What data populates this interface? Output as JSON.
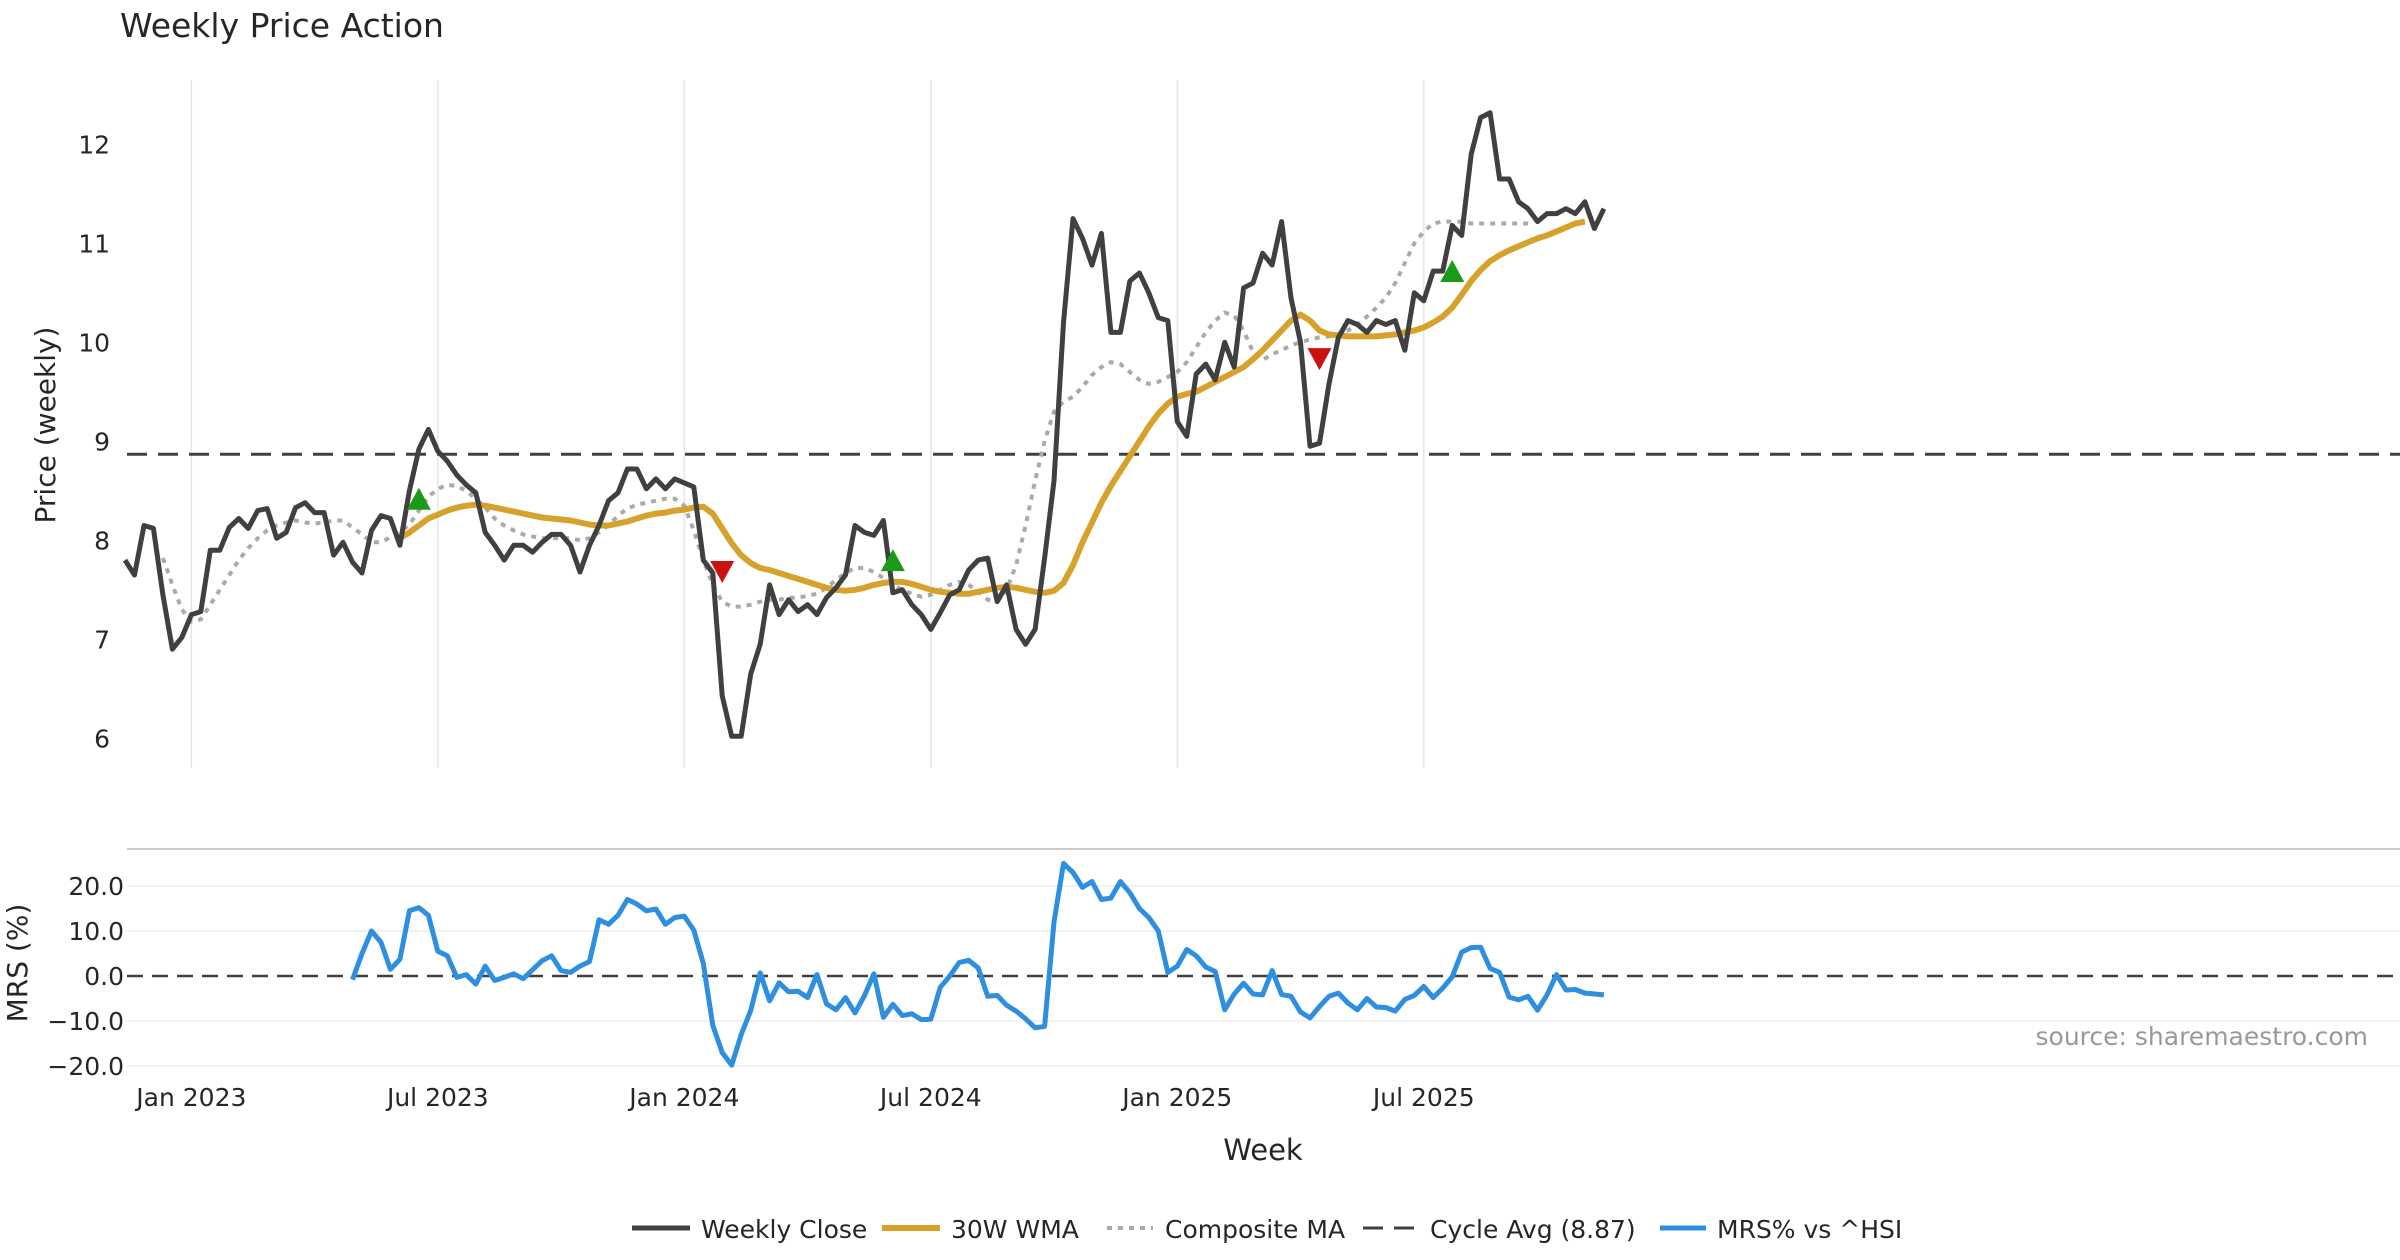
{
  "chart_data": {
    "type": "line",
    "title": "Weekly Price Action",
    "xlabel": "Week",
    "x_ticks": [
      "Jan 2023",
      "Jul 2023",
      "Jan 2024",
      "Jul 2024",
      "Jan 2025",
      "Jul 2025"
    ],
    "price_panel": {
      "ylabel": "Price (weekly)",
      "ylim": [
        5.7,
        12.65
      ],
      "yticks": [
        "6",
        "7",
        "8",
        "9",
        "10",
        "11",
        "12"
      ],
      "cycle_avg": 8.87,
      "series": [
        {
          "name": "Weekly Close",
          "color": "#404040",
          "values": [
            7.8,
            7.65,
            8.15,
            8.12,
            7.45,
            6.9,
            7.02,
            7.25,
            7.28,
            7.9,
            7.9,
            8.13,
            8.22,
            8.12,
            8.3,
            8.32,
            8.02,
            8.08,
            8.33,
            8.38,
            8.28,
            8.28,
            7.85,
            7.98,
            7.78,
            7.67,
            8.1,
            8.25,
            8.22,
            7.95,
            8.5,
            8.92,
            9.12,
            8.9,
            8.8,
            8.66,
            8.56,
            8.48,
            8.08,
            7.95,
            7.8,
            7.95,
            7.95,
            7.88,
            7.98,
            8.06,
            8.06,
            7.95,
            7.68,
            7.95,
            8.15,
            8.4,
            8.48,
            8.72,
            8.72,
            8.52,
            8.62,
            8.52,
            8.62,
            8.58,
            8.54,
            7.8,
            7.67,
            6.43,
            6.02,
            6.02,
            6.65,
            6.95,
            7.55,
            7.25,
            7.4,
            7.28,
            7.35,
            7.25,
            7.42,
            7.52,
            7.65,
            8.15,
            8.08,
            8.05,
            8.2,
            7.47,
            7.5,
            7.35,
            7.25,
            7.1,
            7.27,
            7.45,
            7.5,
            7.7,
            7.8,
            7.82,
            7.38,
            7.55,
            7.1,
            6.95,
            7.1,
            7.82,
            8.6,
            10.2,
            11.25,
            11.05,
            10.78,
            11.1,
            10.1,
            10.1,
            10.62,
            10.7,
            10.5,
            10.25,
            10.22,
            9.2,
            9.05,
            9.68,
            9.78,
            9.62,
            10.0,
            9.75,
            10.55,
            10.6,
            10.9,
            10.78,
            11.22,
            10.45,
            10.0,
            8.95,
            8.98,
            9.58,
            10.05,
            10.22,
            10.18,
            10.1,
            10.22,
            10.18,
            10.22,
            9.92,
            10.5,
            10.42,
            10.72,
            10.72,
            11.18,
            11.08,
            11.9,
            12.27,
            12.32,
            11.65,
            11.65,
            11.42,
            11.35,
            11.22,
            11.3,
            11.3,
            11.35,
            11.3,
            11.42,
            11.15,
            11.35
          ]
        },
        {
          "name": "30W WMA",
          "color": "#d6a22c",
          "start": 29,
          "values": [
            8.02,
            8.08,
            8.15,
            8.22,
            8.26,
            8.3,
            8.33,
            8.35,
            8.36,
            8.35,
            8.33,
            8.31,
            8.29,
            8.27,
            8.25,
            8.23,
            8.22,
            8.21,
            8.2,
            8.18,
            8.16,
            8.15,
            8.15,
            8.17,
            8.19,
            8.22,
            8.25,
            8.27,
            8.28,
            8.3,
            8.31,
            8.33,
            8.34,
            8.27,
            8.12,
            7.97,
            7.85,
            7.77,
            7.72,
            7.7,
            7.67,
            7.64,
            7.61,
            7.58,
            7.55,
            7.52,
            7.5,
            7.49,
            7.5,
            7.52,
            7.55,
            7.57,
            7.58,
            7.58,
            7.56,
            7.53,
            7.5,
            7.48,
            7.47,
            7.46,
            7.46,
            7.48,
            7.5,
            7.52,
            7.53,
            7.52,
            7.5,
            7.48,
            7.47,
            7.49,
            7.57,
            7.75,
            7.98,
            8.18,
            8.38,
            8.55,
            8.7,
            8.85,
            9.0,
            9.15,
            9.28,
            9.38,
            9.45,
            9.48,
            9.5,
            9.55,
            9.6,
            9.65,
            9.7,
            9.75,
            9.83,
            9.92,
            10.02,
            10.12,
            10.22,
            10.28,
            10.22,
            10.12,
            10.08,
            10.07,
            10.06,
            10.06,
            10.06,
            10.06,
            10.07,
            10.08,
            10.1,
            10.12,
            10.15,
            10.2,
            10.26,
            10.35,
            10.48,
            10.62,
            10.73,
            10.82,
            10.88,
            10.93,
            10.97,
            11.01,
            11.05,
            11.08,
            11.12,
            11.16,
            11.2,
            11.22
          ]
        },
        {
          "name": "Composite MA",
          "color": "#aaaaaa",
          "start": 4,
          "values": [
            7.82,
            7.55,
            7.3,
            7.18,
            7.2,
            7.35,
            7.5,
            7.65,
            7.8,
            7.92,
            8.02,
            8.1,
            8.15,
            8.18,
            8.2,
            8.18,
            8.17,
            8.18,
            8.2,
            8.2,
            8.13,
            8.06,
            7.98,
            7.98,
            8.03,
            8.08,
            8.16,
            8.3,
            8.44,
            8.52,
            8.56,
            8.55,
            8.5,
            8.42,
            8.33,
            8.22,
            8.15,
            8.1,
            8.06,
            8.04,
            8.02,
            8.02,
            8.02,
            8.02,
            8.0,
            8.02,
            8.08,
            8.15,
            8.25,
            8.32,
            8.36,
            8.38,
            8.4,
            8.42,
            8.42,
            8.35,
            8.1,
            7.8,
            7.55,
            7.38,
            7.33,
            7.33,
            7.35,
            7.38,
            7.4,
            7.4,
            7.42,
            7.42,
            7.44,
            7.46,
            7.52,
            7.6,
            7.67,
            7.72,
            7.72,
            7.68,
            7.62,
            7.55,
            7.5,
            7.46,
            7.43,
            7.45,
            7.5,
            7.55,
            7.58,
            7.55,
            7.48,
            7.4,
            7.38,
            7.5,
            7.75,
            8.15,
            8.6,
            9.0,
            9.3,
            9.4,
            9.45,
            9.55,
            9.67,
            9.75,
            9.8,
            9.78,
            9.7,
            9.62,
            9.58,
            9.6,
            9.65,
            9.7,
            9.8,
            9.95,
            10.1,
            10.22,
            10.3,
            10.27,
            10.12,
            9.9,
            9.82,
            9.88,
            9.92,
            9.97,
            10.0,
            10.03,
            10.05,
            10.06,
            10.08,
            10.12,
            10.18,
            10.26,
            10.35,
            10.45,
            10.6,
            10.8,
            11.0,
            11.12,
            11.2,
            11.22,
            11.22,
            11.22,
            11.2,
            11.2,
            11.2,
            11.2,
            11.2,
            11.2,
            11.2
          ]
        }
      ],
      "signals": [
        {
          "kind": "buy",
          "index": 31,
          "value": 8.42
        },
        {
          "kind": "sell",
          "index": 63,
          "value": 7.68
        },
        {
          "kind": "buy",
          "index": 81,
          "value": 7.8
        },
        {
          "kind": "sell",
          "index": 126,
          "value": 9.83
        },
        {
          "kind": "buy",
          "index": 140,
          "value": 10.72
        }
      ]
    },
    "mrs_panel": {
      "ylabel": "MRS (%)",
      "ylim": [
        -22,
        28
      ],
      "yticks": [
        "20.0",
        "10.0",
        "0.0",
        "−10.0",
        "−20.0"
      ],
      "series": [
        {
          "name": "MRS% vs ^HSI",
          "color": "#2e8fe0",
          "start": 24,
          "values": [
            -0.8,
            5,
            10,
            7.5,
            1.5,
            3.7,
            14.5,
            15.2,
            13.5,
            5.5,
            4.5,
            -0.3,
            0.3,
            -1.8,
            2.2,
            -1,
            -0.3,
            0.5,
            -0.6,
            1.4,
            3.4,
            4.5,
            1.2,
            0.8,
            2.2,
            3.2,
            12.5,
            11.5,
            13.5,
            17,
            16,
            14.5,
            14.9,
            11.5,
            13,
            13.3,
            10.2,
            2.8,
            -11,
            -17,
            -19.8,
            -13,
            -7.7,
            0.7,
            -5.5,
            -1.5,
            -3.5,
            -3.4,
            -4.8,
            0.3,
            -6.2,
            -7.5,
            -4.8,
            -8.2,
            -4.4,
            0.5,
            -9.2,
            -6.3,
            -8.8,
            -8.4,
            -9.7,
            -9.6,
            -2.5,
            0,
            3,
            3.5,
            1.8,
            -4.5,
            -4.3,
            -6.5,
            -7.8,
            -9.5,
            -11.5,
            -11.2,
            12,
            25,
            23,
            19.7,
            21,
            17,
            17.3,
            21,
            18.5,
            15,
            13,
            10,
            0.8,
            2.2,
            5.9,
            4.5,
            2,
            1,
            -7.5,
            -4,
            -1.6,
            -4,
            -4.2,
            1.2,
            -4.1,
            -4.5,
            -8,
            -9.3,
            -6.8,
            -4.5,
            -3.8,
            -6,
            -7.5,
            -5,
            -6.9,
            -7,
            -7.8,
            -5.2,
            -4.3,
            -2.3,
            -4.8,
            -2.7,
            -0.2,
            5.3,
            6.3,
            6.4,
            1.7,
            0.8,
            -4.7,
            -5.3,
            -4.5,
            -7.6,
            -4.2,
            0.3,
            -3.1,
            -3,
            -3.8,
            -4,
            -4.2
          ]
        }
      ]
    },
    "legend": [
      "Weekly Close",
      "30W WMA",
      "Composite MA",
      "Cycle Avg (8.87)",
      "MRS% vs ^HSI"
    ],
    "source": "source: sharemaestro.com"
  },
  "colors": {
    "buy": "#1a9c1a",
    "sell": "#cc1111",
    "cycle": "#404040",
    "grid": "#e6e6e6"
  }
}
